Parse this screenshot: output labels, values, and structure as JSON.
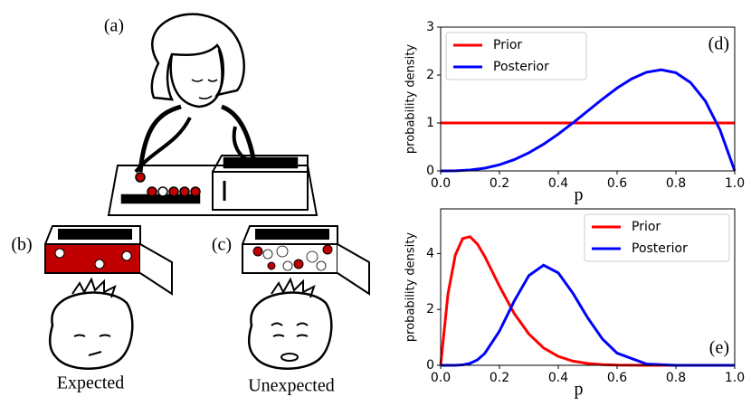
{
  "panels": {
    "a": "(a)",
    "b": "(b)",
    "c": "(c)",
    "expected": "Expected",
    "unexpected": "Unexpected"
  },
  "chart_data": [
    {
      "type": "line",
      "annotation": "(d)",
      "x_label": "p",
      "y_label": "probability density",
      "x": [
        0,
        0.05,
        0.1,
        0.15,
        0.2,
        0.25,
        0.3,
        0.35,
        0.4,
        0.45,
        0.5,
        0.55,
        0.6,
        0.65,
        0.7,
        0.75,
        0.8,
        0.85,
        0.9,
        0.95,
        1.0
      ],
      "series": [
        {
          "name": "Prior",
          "color": "#ff0000",
          "values": [
            1,
            1,
            1,
            1,
            1,
            1,
            1,
            1,
            1,
            1,
            1,
            1,
            1,
            1,
            1,
            1,
            1,
            1,
            1,
            1,
            1
          ]
        },
        {
          "name": "Posterior",
          "color": "#0000ff",
          "values": [
            0,
            0.0024,
            0.018,
            0.0574,
            0.128,
            0.2344,
            0.378,
            0.5574,
            0.768,
            1.0024,
            1.25,
            1.4974,
            1.728,
            1.9224,
            2.058,
            2.1094,
            2.048,
            1.8424,
            1.458,
            0.8574,
            0
          ]
        }
      ],
      "xlim": [
        0,
        1
      ],
      "ylim": [
        0,
        3
      ],
      "xticks": [
        {
          "value": 0,
          "label": "0.0"
        },
        0.2,
        0.4,
        0.6,
        0.8,
        {
          "value": 1,
          "label": "1.0"
        }
      ],
      "yticks": [
        0,
        1,
        2,
        3
      ],
      "legend": "upper-left"
    },
    {
      "type": "line",
      "annotation": "(e)",
      "x_label": "p",
      "y_label": "probability density",
      "x": [
        0,
        0.025,
        0.05,
        0.075,
        0.1,
        0.125,
        0.15,
        0.2,
        0.25,
        0.3,
        0.35,
        0.4,
        0.45,
        0.5,
        0.55,
        0.6,
        0.7,
        0.8,
        0.9,
        1.0
      ],
      "series": [
        {
          "name": "Prior",
          "color": "#ff0000",
          "values": [
            0,
            2.562,
            3.952,
            4.54,
            4.603,
            4.341,
            3.898,
            2.835,
            1.858,
            1.119,
            0.622,
            0.319,
            0.15,
            0.0645,
            0.0247,
            0.0083,
            0.0005,
            0,
            0,
            0
          ]
        },
        {
          "name": "Posterior",
          "color": "#0000ff",
          "values": [
            0,
            0,
            0.002,
            0.0168,
            0.0699,
            0.1956,
            0.4246,
            1.2247,
            2.297,
            3.211,
            3.584,
            3.31,
            2.577,
            1.7,
            0.945,
            0.436,
            0.0464,
            0.0012,
            0,
            0
          ]
        }
      ],
      "xlim": [
        0,
        1
      ],
      "ylim": [
        0,
        5.6
      ],
      "xticks": [
        {
          "value": 0,
          "label": "0.0"
        },
        0.2,
        0.4,
        0.6,
        0.8,
        {
          "value": 1,
          "label": "1.0"
        }
      ],
      "yticks": [
        0,
        2,
        4
      ],
      "legend": "upper-right"
    }
  ]
}
